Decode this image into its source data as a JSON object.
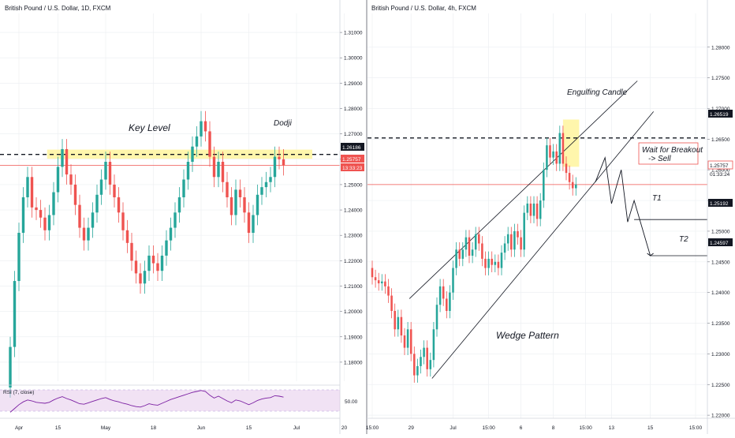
{
  "chart_data": [
    {
      "type": "candlestick",
      "title": "British Pound / U.S. Dollar, 1D, FXCM",
      "ylim": [
        1.1725,
        1.3175
      ],
      "yticks": [
        1.18,
        1.19,
        1.2,
        1.21,
        1.22,
        1.23,
        1.24,
        1.25,
        1.26,
        1.27,
        1.28,
        1.29,
        1.3,
        1.31
      ],
      "ytick_labels": [
        "1.18000",
        "1.19000",
        "1.20000",
        "1.21000",
        "1.22000",
        "1.23000",
        "1.24000",
        "1.25000",
        "1.26000",
        "1.27000",
        "1.28000",
        "1.29000",
        "1.30000",
        "1.31000"
      ],
      "xtick_labels": [
        "Apr",
        "15",
        "May",
        "18",
        "Jun",
        "15",
        "Jul",
        "20"
      ],
      "xtick_index": [
        2,
        11,
        22,
        33,
        44,
        55,
        66,
        77
      ],
      "last_price_label": "1.25757",
      "countdown_label": "13:33:23",
      "level_label": "1.26186",
      "key_level": 1.2619,
      "key_zone": [
        1.2602,
        1.2638
      ],
      "current_price": 1.2576,
      "annotations": {
        "key_level": "Key Level",
        "dodji": "Dodji"
      },
      "candles": [
        [
          1.17,
          1.186
        ],
        [
          1.186,
          1.212
        ],
        [
          1.212,
          1.231
        ],
        [
          1.231,
          1.245
        ],
        [
          1.245,
          1.253
        ],
        [
          1.253,
          1.241
        ],
        [
          1.241,
          1.24
        ],
        [
          1.24,
          1.237
        ],
        [
          1.237,
          1.232
        ],
        [
          1.232,
          1.238
        ],
        [
          1.238,
          1.247
        ],
        [
          1.247,
          1.257
        ],
        [
          1.257,
          1.264
        ],
        [
          1.264,
          1.254
        ],
        [
          1.254,
          1.25
        ],
        [
          1.25,
          1.242
        ],
        [
          1.242,
          1.233
        ],
        [
          1.233,
          1.228
        ],
        [
          1.228,
          1.233
        ],
        [
          1.233,
          1.239
        ],
        [
          1.239,
          1.246
        ],
        [
          1.246,
          1.252
        ],
        [
          1.252,
          1.259
        ],
        [
          1.259,
          1.25
        ],
        [
          1.25,
          1.245
        ],
        [
          1.245,
          1.239
        ],
        [
          1.239,
          1.232
        ],
        [
          1.232,
          1.227
        ],
        [
          1.227,
          1.22
        ],
        [
          1.22,
          1.215
        ],
        [
          1.215,
          1.211
        ],
        [
          1.211,
          1.216
        ],
        [
          1.216,
          1.222
        ],
        [
          1.222,
          1.219
        ],
        [
          1.219,
          1.216
        ],
        [
          1.216,
          1.222
        ],
        [
          1.222,
          1.228
        ],
        [
          1.228,
          1.233
        ],
        [
          1.233,
          1.239
        ],
        [
          1.239,
          1.245
        ],
        [
          1.245,
          1.252
        ],
        [
          1.252,
          1.259
        ],
        [
          1.259,
          1.265
        ],
        [
          1.265,
          1.269
        ],
        [
          1.269,
          1.275
        ],
        [
          1.275,
          1.271
        ],
        [
          1.271,
          1.261
        ],
        [
          1.261,
          1.253
        ],
        [
          1.253,
          1.259
        ],
        [
          1.259,
          1.251
        ],
        [
          1.251,
          1.245
        ],
        [
          1.245,
          1.238
        ],
        [
          1.238,
          1.248
        ],
        [
          1.248,
          1.245
        ],
        [
          1.245,
          1.239
        ],
        [
          1.239,
          1.231
        ],
        [
          1.231,
          1.238
        ],
        [
          1.238,
          1.246
        ],
        [
          1.246,
          1.249
        ],
        [
          1.249,
          1.251
        ],
        [
          1.251,
          1.253
        ],
        [
          1.253,
          1.261
        ],
        [
          1.261,
          1.26
        ],
        [
          1.26,
          1.2576
        ]
      ],
      "rsi": {
        "label": "RSI (7, close)",
        "ylim": [
          20,
          80
        ],
        "level_label": "50.00",
        "values": [
          26,
          34,
          42,
          48,
          52,
          50,
          47,
          46,
          45,
          47,
          52,
          56,
          59,
          55,
          52,
          48,
          44,
          43,
          46,
          49,
          52,
          55,
          57,
          53,
          50,
          48,
          45,
          43,
          40,
          38,
          37,
          40,
          44,
          42,
          41,
          45,
          49,
          53,
          56,
          59,
          62,
          65,
          68,
          70,
          72,
          70,
          62,
          56,
          60,
          55,
          50,
          46,
          52,
          50,
          46,
          42,
          46,
          51,
          54,
          56,
          57,
          61,
          60,
          58
        ]
      }
    },
    {
      "type": "candlestick",
      "title": "British Pound / U.S. Dollar, 4h, FXCM",
      "ylim": [
        1.2195,
        1.2855
      ],
      "yticks": [
        1.22,
        1.225,
        1.23,
        1.235,
        1.24,
        1.245,
        1.25,
        1.255,
        1.26,
        1.265,
        1.27,
        1.275,
        1.28
      ],
      "ytick_labels": [
        "1.22000",
        "1.22500",
        "1.23000",
        "1.23500",
        "1.24000",
        "1.24500",
        "1.25000",
        "1.25500",
        "1.26000",
        "1.26500",
        "1.27000",
        "1.27500",
        "1.28000"
      ],
      "xtick_labels": [
        "15:00",
        "29",
        "Jul",
        "15:00",
        "6",
        "8",
        "15:00",
        "13",
        "15",
        "15:00"
      ],
      "xtick_index": [
        0,
        12,
        25,
        36,
        46,
        56,
        66,
        74,
        86,
        100
      ],
      "last_price_label": "1.25757",
      "countdown_label": "01:33:24",
      "level_labels": {
        "top": "1.26519",
        "t1": "1.25192",
        "t2": "1.24597"
      },
      "levels": {
        "top": 1.2652,
        "t1": 1.2519,
        "t2": 1.246
      },
      "current_price": 1.2576,
      "annotations": {
        "engulfing": "Engulfing Candle",
        "breakout_1": "Wait for Breakout",
        "breakout_2": "-> Sell",
        "t1": "T1",
        "t2": "T2",
        "wedge": "Wedge Pattern"
      },
      "upper_line": [
        [
          11.5,
          1.239
        ],
        [
          82,
          1.2745
        ]
      ],
      "lower_line": [
        [
          18.5,
          1.226
        ],
        [
          87,
          1.2695
        ]
      ],
      "projection": [
        [
          69,
          1.258
        ],
        [
          72,
          1.262
        ],
        [
          74,
          1.2545
        ],
        [
          77,
          1.26
        ],
        [
          79,
          1.2515
        ],
        [
          81,
          1.255
        ],
        [
          86,
          1.246
        ]
      ],
      "highlight_box": [
        [
          59,
          1.2605
        ],
        [
          64,
          1.2682
        ]
      ],
      "candles": [
        [
          1.244,
          1.2425
        ],
        [
          1.2425,
          1.242
        ],
        [
          1.242,
          1.2415
        ],
        [
          1.2415,
          1.2418
        ],
        [
          1.2418,
          1.241
        ],
        [
          1.241,
          1.2395
        ],
        [
          1.2395,
          1.237
        ],
        [
          1.237,
          1.234
        ],
        [
          1.234,
          1.236
        ],
        [
          1.236,
          1.233
        ],
        [
          1.233,
          1.231
        ],
        [
          1.231,
          1.234
        ],
        [
          1.234,
          1.23
        ],
        [
          1.23,
          1.2265
        ],
        [
          1.2265,
          1.228
        ],
        [
          1.228,
          1.2295
        ],
        [
          1.2295,
          1.231
        ],
        [
          1.231,
          1.2275
        ],
        [
          1.2275,
          1.229
        ],
        [
          1.229,
          1.234
        ],
        [
          1.234,
          1.238
        ],
        [
          1.238,
          1.241
        ],
        [
          1.241,
          1.239
        ],
        [
          1.239,
          1.237
        ],
        [
          1.237,
          1.24
        ],
        [
          1.24,
          1.244
        ],
        [
          1.244,
          1.247
        ],
        [
          1.247,
          1.2455
        ],
        [
          1.2455,
          1.247
        ],
        [
          1.247,
          1.249
        ],
        [
          1.249,
          1.246
        ],
        [
          1.246,
          1.247
        ],
        [
          1.247,
          1.2495
        ],
        [
          1.2495,
          1.248
        ],
        [
          1.248,
          1.2455
        ],
        [
          1.2455,
          1.244
        ],
        [
          1.244,
          1.2455
        ],
        [
          1.2455,
          1.2445
        ],
        [
          1.2445,
          1.245
        ],
        [
          1.245,
          1.244
        ],
        [
          1.244,
          1.2465
        ],
        [
          1.2465,
          1.248
        ],
        [
          1.248,
          1.2495
        ],
        [
          1.2495,
          1.247
        ],
        [
          1.247,
          1.25
        ],
        [
          1.25,
          1.249
        ],
        [
          1.249,
          1.247
        ],
        [
          1.247,
          1.253
        ],
        [
          1.253,
          1.2545
        ],
        [
          1.2545,
          1.2525
        ],
        [
          1.2525,
          1.2545
        ],
        [
          1.2545,
          1.252
        ],
        [
          1.252,
          1.255
        ],
        [
          1.255,
          1.26
        ],
        [
          1.26,
          1.264
        ],
        [
          1.264,
          1.262
        ],
        [
          1.262,
          1.263
        ],
        [
          1.263,
          1.261
        ],
        [
          1.261,
          1.266
        ],
        [
          1.266,
          1.261
        ],
        [
          1.261,
          1.2595
        ],
        [
          1.2595,
          1.258
        ],
        [
          1.258,
          1.257
        ],
        [
          1.257,
          1.2576
        ]
      ]
    }
  ]
}
